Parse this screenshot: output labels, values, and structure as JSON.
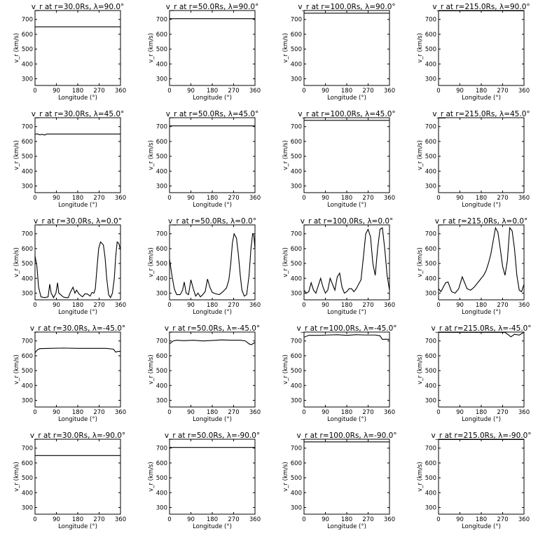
{
  "figure": {
    "rows": [
      {
        "lambda": "90.0",
        "pattern": "flat"
      },
      {
        "lambda": "45.0",
        "pattern": "flat45"
      },
      {
        "lambda": "0.0",
        "pattern": "equator"
      },
      {
        "lambda": "-45.0",
        "pattern": "southern45"
      },
      {
        "lambda": "-90.0",
        "pattern": "flat"
      }
    ],
    "radii": [
      "30.0",
      "50.0",
      "100.0",
      "215.0"
    ]
  },
  "chart_data": [
    {
      "type": "line",
      "title": "v_r at r=30.0Rs, λ=90.0°",
      "xlabel": "Longitude (°)",
      "ylabel": "v_r (km/s)",
      "xlim": [
        0,
        360
      ],
      "ylim": [
        255,
        760
      ],
      "xticks": [
        0,
        90,
        180,
        270,
        360
      ],
      "yticks": [
        300,
        400,
        500,
        600,
        700
      ],
      "x": [
        0,
        360
      ],
      "y": [
        650,
        650
      ]
    },
    {
      "type": "line",
      "title": "v_r at r=50.0Rs, λ=90.0°",
      "xlabel": "Longitude (°)",
      "ylabel": "v_r (km/s)",
      "xlim": [
        0,
        360
      ],
      "ylim": [
        255,
        760
      ],
      "xticks": [
        0,
        90,
        180,
        270,
        360
      ],
      "yticks": [
        300,
        400,
        500,
        600,
        700
      ],
      "x": [
        0,
        360
      ],
      "y": [
        705,
        705
      ]
    },
    {
      "type": "line",
      "title": "v_r at r=100.0Rs, λ=90.0°",
      "xlabel": "Longitude (°)",
      "ylabel": "v_r (km/s)",
      "xlim": [
        0,
        360
      ],
      "ylim": [
        255,
        760
      ],
      "xticks": [
        0,
        90,
        180,
        270,
        360
      ],
      "yticks": [
        300,
        400,
        500,
        600,
        700
      ],
      "x": [
        0,
        360
      ],
      "y": [
        742,
        742
      ]
    },
    {
      "type": "line",
      "title": "v_r at r=215.0Rs, λ=90.0°",
      "xlabel": "Longitude (°)",
      "ylabel": "v_r (km/s)",
      "xlim": [
        0,
        360
      ],
      "ylim": [
        255,
        760
      ],
      "xticks": [
        0,
        90,
        180,
        270,
        360
      ],
      "yticks": [
        300,
        400,
        500,
        600,
        700
      ],
      "x": [
        0,
        360
      ],
      "y": [
        758,
        758
      ]
    },
    {
      "type": "line",
      "title": "v_r at r=30.0Rs, λ=45.0°",
      "xlabel": "Longitude (°)",
      "ylabel": "v_r (km/s)",
      "xlim": [
        0,
        360
      ],
      "ylim": [
        255,
        760
      ],
      "xticks": [
        0,
        90,
        180,
        270,
        360
      ],
      "yticks": [
        300,
        400,
        500,
        600,
        700
      ],
      "x": [
        0,
        10,
        20,
        30,
        40,
        50,
        60,
        360
      ],
      "y": [
        648,
        651,
        645,
        648,
        643,
        650,
        650,
        650
      ]
    },
    {
      "type": "line",
      "title": "v_r at r=50.0Rs, λ=45.0°",
      "xlabel": "Longitude (°)",
      "ylabel": "v_r (km/s)",
      "xlim": [
        0,
        360
      ],
      "ylim": [
        255,
        760
      ],
      "xticks": [
        0,
        90,
        180,
        270,
        360
      ],
      "yticks": [
        300,
        400,
        500,
        600,
        700
      ],
      "x": [
        0,
        360
      ],
      "y": [
        705,
        705
      ]
    },
    {
      "type": "line",
      "title": "v_r at r=100.0Rs, λ=45.0°",
      "xlabel": "Longitude (°)",
      "ylabel": "v_r (km/s)",
      "xlim": [
        0,
        360
      ],
      "ylim": [
        255,
        760
      ],
      "xticks": [
        0,
        90,
        180,
        270,
        360
      ],
      "yticks": [
        300,
        400,
        500,
        600,
        700
      ],
      "x": [
        0,
        360
      ],
      "y": [
        742,
        742
      ]
    },
    {
      "type": "line",
      "title": "v_r at r=215.0Rs, λ=45.0°",
      "xlabel": "Longitude (°)",
      "ylabel": "v_r (km/s)",
      "xlim": [
        0,
        360
      ],
      "ylim": [
        255,
        760
      ],
      "xticks": [
        0,
        90,
        180,
        270,
        360
      ],
      "yticks": [
        300,
        400,
        500,
        600,
        700
      ],
      "x": [
        0,
        30
      ],
      "y": [
        758,
        758
      ]
    },
    {
      "type": "line",
      "title": "v_r at r=30.0Rs, λ=0.0°",
      "xlabel": "Longitude (°)",
      "ylabel": "v_r (km/s)",
      "xlim": [
        0,
        360
      ],
      "ylim": [
        255,
        760
      ],
      "xticks": [
        0,
        90,
        180,
        270,
        360
      ],
      "yticks": [
        300,
        400,
        500,
        600,
        700
      ],
      "x": [
        0,
        8,
        15,
        25,
        40,
        55,
        62,
        68,
        78,
        88,
        95,
        100,
        108,
        118,
        128,
        140,
        150,
        160,
        168,
        175,
        185,
        200,
        210,
        220,
        232,
        240,
        248,
        254,
        260,
        268,
        276,
        288,
        295,
        302,
        310,
        318,
        326,
        334,
        340,
        346,
        350,
        354,
        360
      ],
      "y": [
        550,
        480,
        340,
        275,
        270,
        275,
        360,
        300,
        270,
        300,
        370,
        300,
        290,
        275,
        270,
        270,
        310,
        340,
        300,
        320,
        295,
        275,
        295,
        295,
        280,
        305,
        300,
        330,
        450,
        600,
        645,
        625,
        540,
        400,
        290,
        270,
        300,
        400,
        550,
        645,
        640,
        630,
        590
      ]
    },
    {
      "type": "line",
      "title": "v_r at r=50.0Rs, λ=0.0°",
      "xlabel": "Longitude (°)",
      "ylabel": "v_r (km/s)",
      "xlim": [
        0,
        360
      ],
      "ylim": [
        255,
        760
      ],
      "xticks": [
        0,
        90,
        180,
        270,
        360
      ],
      "yticks": [
        300,
        400,
        500,
        600,
        700
      ],
      "x": [
        0,
        10,
        20,
        30,
        45,
        55,
        62,
        70,
        80,
        90,
        100,
        110,
        120,
        130,
        140,
        150,
        160,
        170,
        180,
        195,
        210,
        225,
        240,
        250,
        258,
        265,
        272,
        282,
        290,
        298,
        305,
        315,
        325,
        335,
        343,
        350,
        355,
        360
      ],
      "y": [
        530,
        420,
        330,
        290,
        290,
        320,
        375,
        300,
        290,
        390,
        330,
        280,
        300,
        275,
        290,
        310,
        395,
        340,
        305,
        295,
        290,
        310,
        335,
        390,
        500,
        640,
        700,
        670,
        560,
        420,
        320,
        280,
        290,
        420,
        600,
        700,
        690,
        600
      ]
    },
    {
      "type": "line",
      "title": "v_r at r=100.0Rs, λ=0.0°",
      "xlabel": "Longitude (°)",
      "ylabel": "v_r (km/s)",
      "xlim": [
        0,
        360
      ],
      "ylim": [
        255,
        760
      ],
      "xticks": [
        0,
        90,
        180,
        270,
        360
      ],
      "yticks": [
        300,
        400,
        500,
        600,
        700
      ],
      "x": [
        0,
        10,
        20,
        30,
        40,
        50,
        60,
        70,
        80,
        90,
        100,
        110,
        120,
        130,
        140,
        150,
        160,
        170,
        180,
        190,
        200,
        210,
        220,
        230,
        240,
        250,
        260,
        270,
        280,
        290,
        300,
        310,
        320,
        330,
        340,
        350,
        360
      ],
      "y": [
        320,
        300,
        310,
        370,
        320,
        300,
        350,
        400,
        340,
        300,
        320,
        400,
        360,
        320,
        410,
        435,
        340,
        300,
        310,
        330,
        330,
        310,
        330,
        360,
        390,
        540,
        700,
        730,
        680,
        500,
        420,
        600,
        730,
        740,
        600,
        420,
        320
      ]
    },
    {
      "type": "line",
      "title": "v_r at r=215.0Rs, λ=0.0°",
      "xlabel": "Longitude (°)",
      "ylabel": "v_r (km/s)",
      "xlim": [
        0,
        360
      ],
      "ylim": [
        255,
        760
      ],
      "xticks": [
        0,
        90,
        180,
        270,
        360
      ],
      "yticks": [
        300,
        400,
        500,
        600,
        700
      ],
      "x": [
        0,
        10,
        20,
        30,
        40,
        55,
        70,
        85,
        100,
        110,
        120,
        135,
        150,
        170,
        190,
        200,
        210,
        220,
        230,
        240,
        250,
        260,
        270,
        280,
        290,
        300,
        310,
        320,
        330,
        340,
        350,
        360
      ],
      "y": [
        330,
        310,
        340,
        370,
        375,
        310,
        300,
        330,
        410,
        370,
        330,
        320,
        340,
        380,
        420,
        450,
        500,
        560,
        650,
        740,
        710,
        600,
        480,
        420,
        520,
        740,
        720,
        600,
        420,
        320,
        310,
        360
      ]
    },
    {
      "type": "line",
      "title": "v_r at r=30.0Rs, λ=-45.0°",
      "xlabel": "Longitude (°)",
      "ylabel": "v_r (km/s)",
      "xlim": [
        0,
        360
      ],
      "ylim": [
        255,
        760
      ],
      "xticks": [
        0,
        90,
        180,
        270,
        360
      ],
      "yticks": [
        300,
        400,
        500,
        600,
        700
      ],
      "x": [
        0,
        10,
        20,
        60,
        120,
        180,
        240,
        300,
        330,
        340,
        350,
        360
      ],
      "y": [
        620,
        640,
        648,
        650,
        652,
        650,
        650,
        650,
        645,
        625,
        630,
        630
      ]
    },
    {
      "type": "line",
      "title": "v_r at r=50.0Rs, λ=-45.0°",
      "xlabel": "Longitude (°)",
      "ylabel": "v_r (km/s)",
      "xlim": [
        0,
        360
      ],
      "ylim": [
        255,
        760
      ],
      "xticks": [
        0,
        90,
        180,
        270,
        360
      ],
      "yticks": [
        300,
        400,
        500,
        600,
        700
      ],
      "x": [
        0,
        15,
        30,
        60,
        100,
        140,
        180,
        220,
        260,
        300,
        320,
        335,
        345,
        360
      ],
      "y": [
        680,
        700,
        705,
        702,
        705,
        700,
        703,
        707,
        705,
        705,
        700,
        680,
        675,
        690
      ]
    },
    {
      "type": "line",
      "title": "v_r at r=100.0Rs, λ=-45.0°",
      "xlabel": "Longitude (°)",
      "ylabel": "v_r (km/s)",
      "xlim": [
        0,
        360
      ],
      "ylim": [
        255,
        760
      ],
      "xticks": [
        0,
        90,
        180,
        270,
        360
      ],
      "yticks": [
        300,
        400,
        500,
        600,
        700
      ],
      "x": [
        0,
        20,
        60,
        100,
        140,
        180,
        220,
        260,
        300,
        320,
        330,
        345,
        360
      ],
      "y": [
        725,
        738,
        738,
        740,
        742,
        738,
        742,
        740,
        740,
        735,
        710,
        712,
        710
      ]
    },
    {
      "type": "line",
      "title": "v_r at r=215.0Rs, λ=-45.0°",
      "xlabel": "Longitude (°)",
      "ylabel": "v_r (km/s)",
      "xlim": [
        0,
        360
      ],
      "ylim": [
        255,
        760
      ],
      "xticks": [
        0,
        90,
        180,
        270,
        360
      ],
      "yticks": [
        300,
        400,
        500,
        600,
        700
      ],
      "x": [
        0,
        60,
        120,
        180,
        240,
        280,
        295,
        305,
        320,
        340,
        360
      ],
      "y": [
        758,
        758,
        758,
        758,
        758,
        758,
        740,
        728,
        745,
        740,
        758
      ]
    },
    {
      "type": "line",
      "title": "v_r at r=30.0Rs, λ=-90.0°",
      "xlabel": "Longitude (°)",
      "ylabel": "v_r (km/s)",
      "xlim": [
        0,
        360
      ],
      "ylim": [
        255,
        760
      ],
      "xticks": [
        0,
        90,
        180,
        270,
        360
      ],
      "yticks": [
        300,
        400,
        500,
        600,
        700
      ],
      "x": [
        0,
        360
      ],
      "y": [
        650,
        650
      ]
    },
    {
      "type": "line",
      "title": "v_r at r=50.0Rs, λ=-90.0°",
      "xlabel": "Longitude (°)",
      "ylabel": "v_r (km/s)",
      "xlim": [
        0,
        360
      ],
      "ylim": [
        255,
        760
      ],
      "xticks": [
        0,
        90,
        180,
        270,
        360
      ],
      "yticks": [
        300,
        400,
        500,
        600,
        700
      ],
      "x": [
        0,
        360
      ],
      "y": [
        705,
        705
      ]
    },
    {
      "type": "line",
      "title": "v_r at r=100.0Rs, λ=-90.0°",
      "xlabel": "Longitude (°)",
      "ylabel": "v_r (km/s)",
      "xlim": [
        0,
        360
      ],
      "ylim": [
        255,
        760
      ],
      "xticks": [
        0,
        90,
        180,
        270,
        360
      ],
      "yticks": [
        300,
        400,
        500,
        600,
        700
      ],
      "x": [
        0,
        360
      ],
      "y": [
        742,
        742
      ]
    },
    {
      "type": "line",
      "title": "v_r at r=215.0Rs, λ=-90.0°",
      "xlabel": "Longitude (°)",
      "ylabel": "v_r (km/s)",
      "xlim": [
        0,
        360
      ],
      "ylim": [
        255,
        760
      ],
      "xticks": [
        0,
        90,
        180,
        270,
        360
      ],
      "yticks": [
        300,
        400,
        500,
        600,
        700
      ],
      "x": [
        0,
        360
      ],
      "y": [
        758,
        758
      ]
    }
  ]
}
